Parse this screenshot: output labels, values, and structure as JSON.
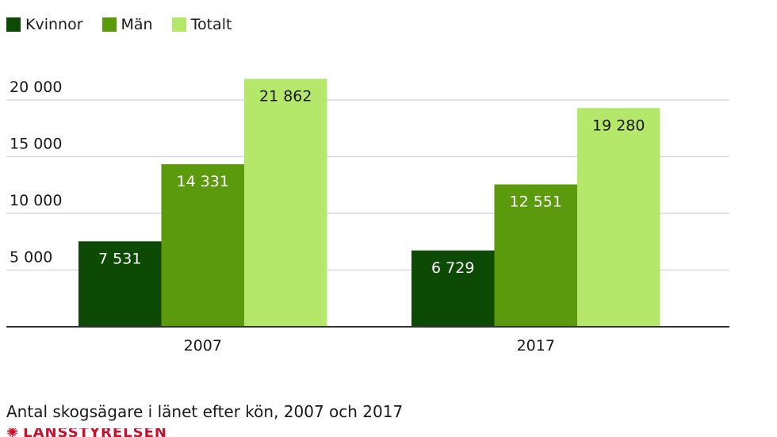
{
  "chart_data": {
    "type": "bar",
    "title": "",
    "xlabel": "",
    "ylabel": "",
    "categories": [
      "2007",
      "2017"
    ],
    "series": [
      {
        "name": "Kvinnor",
        "values": [
          7531,
          6729
        ],
        "labels": [
          "7 531",
          "6 729"
        ],
        "color": "#0c4a06"
      },
      {
        "name": "Män",
        "values": [
          14331,
          12551
        ],
        "labels": [
          "14 331",
          "12 551"
        ],
        "color": "#5a9a0c"
      },
      {
        "name": "Totalt",
        "values": [
          21862,
          19280
        ],
        "labels": [
          "21 862",
          "19 280"
        ],
        "color": "#b5e86a"
      }
    ],
    "ylim": [
      0,
      20000
    ],
    "yticks": [
      5000,
      10000,
      15000,
      20000
    ],
    "ytick_labels": [
      "5 000",
      "10 000",
      "15 000",
      "20 000"
    ],
    "grid": true,
    "legend_position": "top-left"
  },
  "caption": "Antal skogsägare i länet efter kön, 2007 och 2017",
  "logo": {
    "text": "LÄNSSTYRELSEN"
  }
}
